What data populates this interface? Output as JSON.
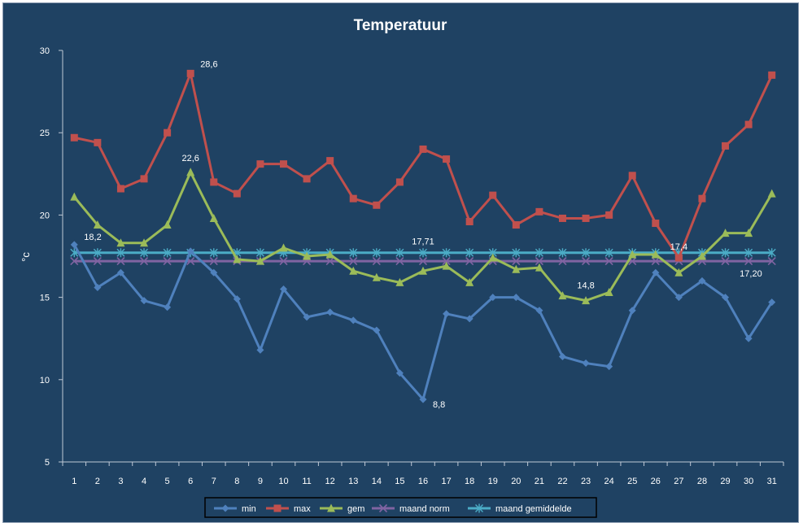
{
  "chart_data": {
    "type": "line",
    "title": "Temperatuur",
    "xlabel": "",
    "ylabel": "°c",
    "ylim": [
      5,
      30
    ],
    "yticks": [
      5,
      10,
      15,
      20,
      25,
      30
    ],
    "categories": [
      "1",
      "2",
      "3",
      "4",
      "5",
      "6",
      "7",
      "8",
      "9",
      "10",
      "11",
      "12",
      "13",
      "14",
      "15",
      "16",
      "17",
      "18",
      "19",
      "20",
      "21",
      "22",
      "23",
      "24",
      "25",
      "26",
      "27",
      "28",
      "29",
      "30",
      "31"
    ],
    "legend_position": "bottom",
    "grid": false,
    "series": [
      {
        "name": "min",
        "color": "#4f81bd",
        "marker": "diamond",
        "values": [
          18.2,
          15.6,
          16.5,
          14.8,
          14.4,
          17.8,
          16.5,
          14.9,
          11.8,
          15.5,
          13.8,
          14.1,
          13.6,
          13.0,
          10.4,
          8.8,
          14.0,
          13.7,
          15.0,
          15.0,
          14.2,
          11.4,
          11.0,
          10.8,
          14.2,
          16.5,
          15.0,
          16.0,
          15.0,
          12.5,
          14.7
        ]
      },
      {
        "name": "max",
        "color": "#c0504d",
        "marker": "square",
        "values": [
          24.7,
          24.4,
          21.6,
          22.2,
          25.0,
          28.6,
          22.0,
          21.3,
          23.1,
          23.1,
          22.2,
          23.3,
          21.0,
          20.6,
          22.0,
          24.0,
          23.4,
          19.6,
          21.2,
          19.4,
          20.2,
          19.8,
          19.8,
          20.0,
          22.4,
          19.5,
          17.4,
          21.0,
          24.2,
          25.5,
          28.5
        ]
      },
      {
        "name": "gem",
        "color": "#9bbb59",
        "marker": "triangle",
        "values": [
          21.1,
          19.4,
          18.3,
          18.3,
          19.4,
          22.6,
          19.8,
          17.3,
          17.2,
          18.0,
          17.5,
          17.6,
          16.6,
          16.2,
          15.9,
          16.6,
          16.9,
          15.9,
          17.4,
          16.7,
          16.8,
          15.1,
          14.8,
          15.3,
          17.6,
          17.6,
          16.5,
          17.5,
          18.9,
          18.9,
          21.3
        ]
      },
      {
        "name": "maand norm",
        "color": "#8064a2",
        "marker": "x",
        "values": [
          17.2,
          17.2,
          17.2,
          17.2,
          17.2,
          17.2,
          17.2,
          17.2,
          17.2,
          17.2,
          17.2,
          17.2,
          17.2,
          17.2,
          17.2,
          17.2,
          17.2,
          17.2,
          17.2,
          17.2,
          17.2,
          17.2,
          17.2,
          17.2,
          17.2,
          17.2,
          17.2,
          17.2,
          17.2,
          17.2,
          17.2
        ]
      },
      {
        "name": "maand gemiddelde",
        "color": "#4bacc6",
        "marker": "star",
        "values": [
          17.71,
          17.71,
          17.71,
          17.71,
          17.71,
          17.71,
          17.71,
          17.71,
          17.71,
          17.71,
          17.71,
          17.71,
          17.71,
          17.71,
          17.71,
          17.71,
          17.71,
          17.71,
          17.71,
          17.71,
          17.71,
          17.71,
          17.71,
          17.71,
          17.71,
          17.71,
          17.71,
          17.71,
          17.71,
          17.71,
          17.71
        ]
      }
    ],
    "annotations": [
      {
        "text": "18,2",
        "series": "min",
        "x": "1"
      },
      {
        "text": "28,6",
        "series": "max",
        "x": "6"
      },
      {
        "text": "22,6",
        "series": "gem",
        "x": "6"
      },
      {
        "text": "17,71",
        "series": "maand gemiddelde",
        "x": "16"
      },
      {
        "text": "8,8",
        "series": "min",
        "x": "16"
      },
      {
        "text": "14,8",
        "series": "gem",
        "x": "23"
      },
      {
        "text": "17,4",
        "series": "max",
        "x": "27"
      },
      {
        "text": "17,20",
        "series": "maand norm",
        "x": "31"
      }
    ],
    "colors": {
      "background": "#1f4263",
      "axis": "#bfc9d6",
      "text": "#ffffff"
    }
  }
}
